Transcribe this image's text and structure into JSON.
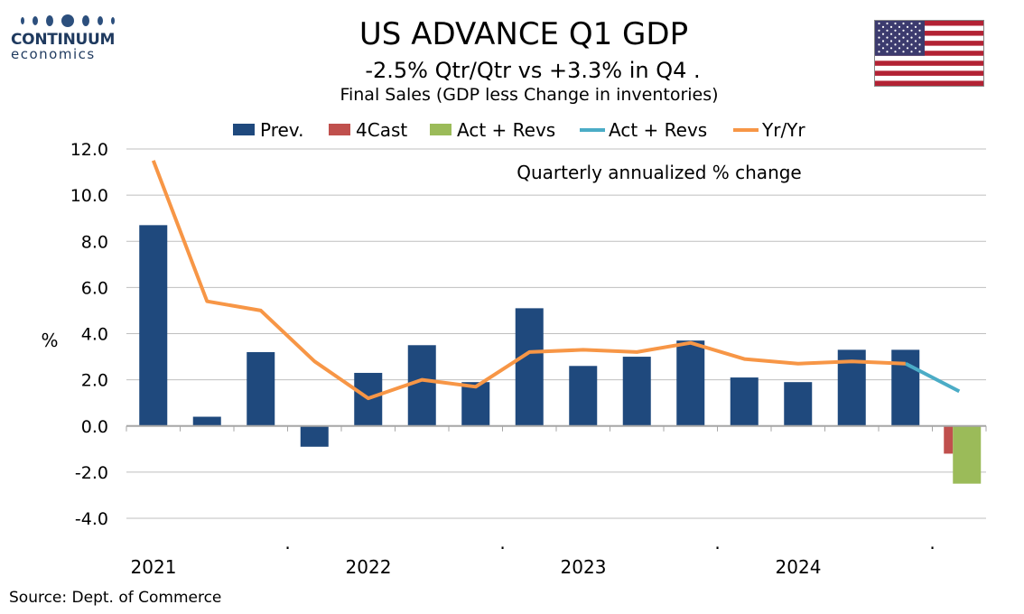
{
  "logo": {
    "name": "CONTINUUM",
    "sub": "economics",
    "icon": "continuum-dots-logo"
  },
  "title": "US ADVANCE Q1 GDP",
  "subtitle": "-2.5% Qtr/Qtr vs +3.3% in Q4 .",
  "subtitle2": "Final Sales (GDP less Change in inventories)",
  "flag": {
    "icon": "us-flag-icon",
    "colors": {
      "red": "#b22234",
      "white": "#ffffff",
      "blue": "#3c3b6e"
    }
  },
  "source": "Source: Dept. of Commerce",
  "chart_data": {
    "type": "bar",
    "annotation": "Quarterly annualized % change",
    "ylabel": "%",
    "ylim": [
      -4,
      12
    ],
    "yticks": [
      12,
      10,
      8,
      6,
      4,
      2,
      0,
      -2,
      -4
    ],
    "ytick_labels": [
      "12.0",
      "10.0",
      "8.0",
      "6.0",
      "4.0",
      "2.0",
      "0.0",
      "-2.0",
      "-4.0"
    ],
    "grid": true,
    "legend_position": "top",
    "x_labels": [
      "2021",
      ".",
      "2022",
      ".",
      "2023",
      ".",
      "2024",
      "."
    ],
    "x_label_quarter_index": [
      0,
      2.5,
      4,
      6.5,
      8,
      10.5,
      12,
      14.5
    ],
    "categories": [
      "2021Q1",
      "2021Q2",
      "2021Q3",
      "2021Q4",
      "2022Q1",
      "2022Q2",
      "2022Q3",
      "2022Q4",
      "2023Q1",
      "2023Q2",
      "2023Q3",
      "2023Q4",
      "2024Q1",
      "2024Q2",
      "2024Q3",
      "2024Q4",
      "2025Q1"
    ],
    "series": [
      {
        "name": "Prev.",
        "type": "bar",
        "color": "#1f497d",
        "values": [
          8.7,
          0.4,
          3.2,
          -0.9,
          2.3,
          3.5,
          1.9,
          5.1,
          2.6,
          3.0,
          3.7,
          2.1,
          1.9,
          3.3,
          3.3,
          null,
          null
        ]
      },
      {
        "name": "4Cast",
        "type": "bar",
        "color": "#c0504d",
        "values": [
          null,
          null,
          null,
          null,
          null,
          null,
          null,
          null,
          null,
          null,
          null,
          null,
          null,
          null,
          null,
          -1.2,
          null
        ]
      },
      {
        "name": "Act + Revs",
        "type": "bar",
        "color": "#9bbb59",
        "values": [
          null,
          null,
          null,
          null,
          null,
          null,
          null,
          null,
          null,
          null,
          null,
          null,
          null,
          null,
          null,
          -2.5,
          null
        ]
      },
      {
        "name": "Act + Revs",
        "type": "line",
        "color": "#4bacc6",
        "values": [
          null,
          null,
          null,
          null,
          null,
          null,
          null,
          null,
          null,
          null,
          null,
          null,
          null,
          null,
          2.7,
          1.5,
          null
        ]
      },
      {
        "name": "Yr/Yr",
        "type": "line",
        "color": "#f79646",
        "values": [
          11.5,
          5.4,
          5.0,
          2.8,
          1.2,
          2.0,
          1.7,
          3.2,
          3.3,
          3.2,
          3.6,
          2.9,
          2.7,
          2.8,
          2.7,
          null,
          null
        ]
      }
    ]
  }
}
